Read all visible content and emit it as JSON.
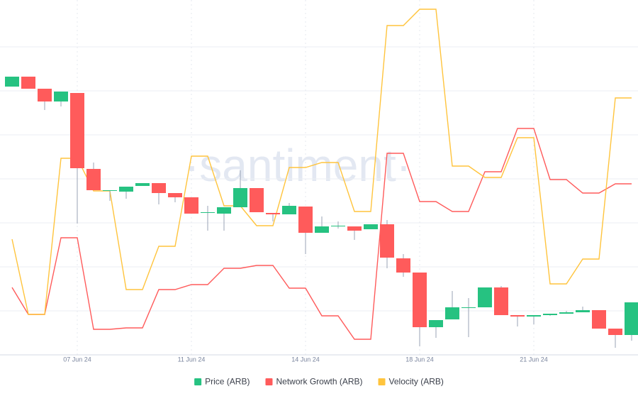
{
  "chart_data": {
    "type": "candlestick",
    "watermark": "·santiment·",
    "categories": [
      null,
      null,
      null,
      null,
      "07 Jun 24",
      null,
      null,
      null,
      null,
      null,
      null,
      "11 Jun 24",
      null,
      null,
      null,
      null,
      null,
      null,
      "14 Jun 24",
      null,
      null,
      null,
      null,
      null,
      null,
      "18 Jun 24",
      null,
      null,
      null,
      null,
      null,
      null,
      "21 Jun 24",
      null,
      null,
      null,
      null,
      null,
      null
    ],
    "ylim": [
      0,
      100
    ],
    "yticks": [
      12.4,
      24.8,
      37.2,
      49.6,
      62,
      74.4,
      86.8
    ],
    "grid": true,
    "legend": "bottom",
    "series": [
      {
        "name": "Price (ARB)",
        "type": "candlestick",
        "color": "#26c281",
        "up_color": "#26c281",
        "down_color": "#ff5b5b",
        "open": [
          75.6,
          78.4,
          75,
          71.4,
          73.8,
          52.4,
          46.2,
          46,
          47.6,
          48.4,
          45.6,
          44.4,
          40,
          39.8,
          41.6,
          47,
          40,
          39.6,
          41.8,
          34.4,
          36.4,
          36.2,
          35.4,
          36.8,
          27.2,
          23.2,
          7.8,
          10,
          13.4,
          13.4,
          19,
          11.2,
          10.8,
          11.2,
          11.6,
          12,
          12.6,
          7.4,
          5.6
        ],
        "high": [
          78.4,
          78.4,
          75,
          74.2,
          73.8,
          54.2,
          46.4,
          47.4,
          48.4,
          48.4,
          45.6,
          44.4,
          42,
          41.6,
          52,
          47,
          40,
          42.8,
          41.8,
          39,
          37.6,
          36.2,
          36.8,
          38,
          28.4,
          23.2,
          9.8,
          18,
          16,
          19,
          19.4,
          11.2,
          11.2,
          11.6,
          12.4,
          13.6,
          12.6,
          7.4,
          14.8
        ],
        "low": [
          75.6,
          75,
          69,
          70,
          37,
          46.4,
          43.4,
          44,
          47.6,
          42.4,
          43,
          39.8,
          35,
          35,
          41.6,
          40.2,
          37.6,
          39.6,
          28.4,
          34.4,
          35.6,
          32.4,
          35.4,
          24.4,
          22,
          2.4,
          4.8,
          10,
          5,
          13.4,
          11.2,
          8,
          8.6,
          11,
          11.6,
          12,
          7.4,
          2,
          4
        ],
        "close": [
          78.4,
          75,
          71.4,
          74.2,
          52.6,
          46.4,
          46.4,
          47.4,
          48.4,
          45.6,
          44.4,
          39.8,
          40.2,
          41.6,
          47,
          40.2,
          39.6,
          42,
          34.4,
          36.2,
          36.4,
          35,
          36.8,
          27.4,
          23.2,
          7.8,
          9.8,
          13.4,
          13.4,
          19,
          11.2,
          10.8,
          11.2,
          11.6,
          12,
          12.6,
          7.4,
          5.6,
          14.8
        ]
      },
      {
        "name": "Network Growth (ARB)",
        "type": "line",
        "color": "#ff5b5b",
        "values": [
          19,
          11.4,
          11.4,
          33,
          33,
          7.2,
          7.2,
          7.6,
          7.6,
          18.4,
          18.4,
          19.8,
          19.8,
          24.4,
          24.4,
          25.2,
          25.2,
          18.8,
          18.8,
          11,
          11,
          4.4,
          4.4,
          56.8,
          56.8,
          43.2,
          43.2,
          40.4,
          40.4,
          51.6,
          51.6,
          63.8,
          63.8,
          49.4,
          49.4,
          45.6,
          45.6,
          48.2,
          48.2
        ]
      },
      {
        "name": "Velocity (ARB)",
        "type": "line",
        "color": "#ffc43d",
        "values": [
          32.6,
          11.4,
          11.4,
          55.4,
          55.4,
          46.2,
          46.2,
          18.4,
          18.4,
          30.6,
          30.6,
          56,
          56,
          42,
          42,
          36.4,
          36.4,
          52.8,
          52.8,
          54.2,
          54.2,
          40.4,
          40.4,
          92.8,
          92.8,
          97.4,
          97.4,
          53.2,
          53.2,
          50,
          50,
          61.2,
          61.2,
          20,
          20,
          27,
          27,
          72.4,
          72.4
        ]
      }
    ]
  }
}
